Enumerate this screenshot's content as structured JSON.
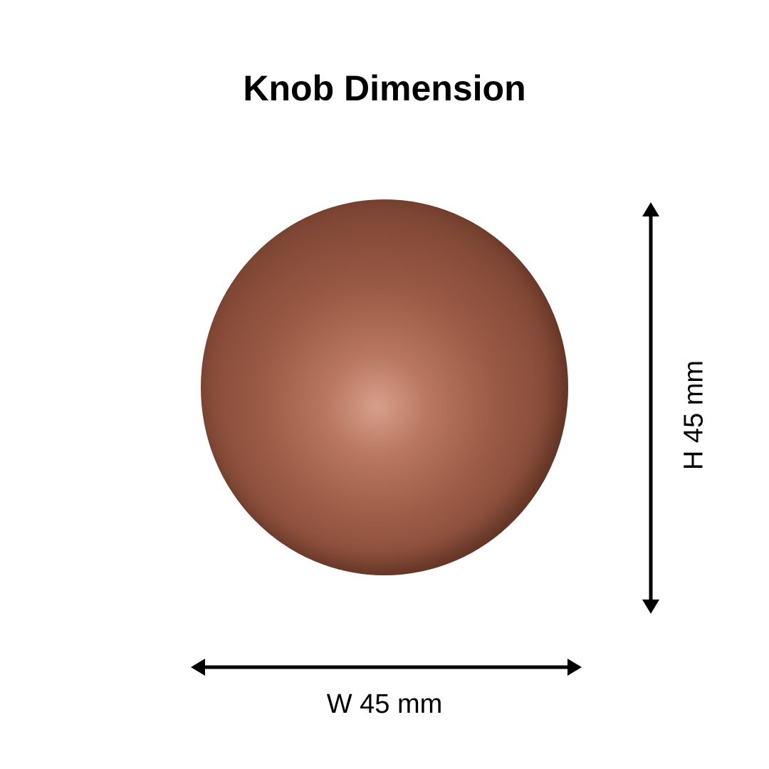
{
  "title": "Knob Dimension",
  "width_label": "W 45 mm",
  "height_label": "H 45 mm",
  "colors": {
    "knob": "#9a5a45",
    "arrow": "#000000"
  }
}
